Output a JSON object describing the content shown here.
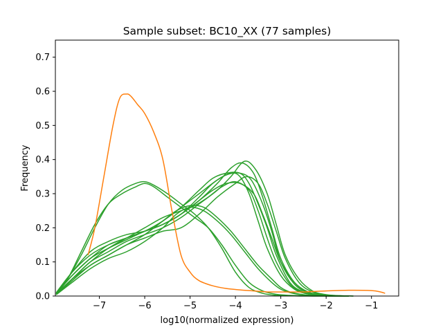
{
  "chart_data": {
    "type": "line",
    "title": "Sample subset: BC10_XX (77 samples)",
    "xlabel": "log10(normalized expression)",
    "ylabel": "Frequency",
    "xlim": [
      -7.97,
      -0.4
    ],
    "ylim": [
      0,
      0.75
    ],
    "xticks": [
      -7,
      -6,
      -5,
      -4,
      -3,
      -2,
      -1
    ],
    "xtick_labels": [
      "−7",
      "−6",
      "−5",
      "−4",
      "−3",
      "−2",
      "−1"
    ],
    "yticks": [
      0.0,
      0.1,
      0.2,
      0.3,
      0.4,
      0.5,
      0.6,
      0.7
    ],
    "ytick_labels": [
      "0.0",
      "0.1",
      "0.2",
      "0.3",
      "0.4",
      "0.5",
      "0.6",
      "0.7"
    ],
    "grid": false,
    "legend": "none",
    "colors": {
      "orange": "#ff7f0e",
      "green": "#2ca02c"
    },
    "series": [
      {
        "color": "orange",
        "x": [
          -7.25,
          -7.1,
          -6.9,
          -6.7,
          -6.55,
          -6.4,
          -6.3,
          -6.15,
          -6.0,
          -5.8,
          -5.6,
          -5.4,
          -5.2,
          -5.0,
          -4.8,
          -4.5,
          -4.2,
          -3.9,
          -3.6,
          -3.3,
          -3.0,
          -2.5,
          -2.0,
          -1.5,
          -1.0,
          -0.8,
          -0.7
        ],
        "y": [
          0.12,
          0.2,
          0.35,
          0.5,
          0.58,
          0.592,
          0.585,
          0.56,
          0.535,
          0.48,
          0.4,
          0.25,
          0.12,
          0.07,
          0.045,
          0.03,
          0.022,
          0.018,
          0.015,
          0.012,
          0.012,
          0.012,
          0.015,
          0.017,
          0.016,
          0.012,
          0.008
        ]
      },
      {
        "color": "green",
        "x": [
          -7.95,
          -7.7,
          -7.4,
          -7.1,
          -6.8,
          -6.5,
          -6.2,
          -6.0,
          -5.8,
          -5.5,
          -5.2,
          -4.9,
          -4.6,
          -4.3,
          -4.0,
          -3.7,
          -3.4,
          -3.1,
          -2.8,
          -2.5,
          -2.2,
          -1.9,
          -1.6
        ],
        "y": [
          0.005,
          0.05,
          0.13,
          0.21,
          0.27,
          0.3,
          0.32,
          0.33,
          0.32,
          0.29,
          0.26,
          0.23,
          0.2,
          0.15,
          0.09,
          0.04,
          0.015,
          0.005,
          0.002,
          0.001,
          0.0,
          0.0,
          0.0
        ]
      },
      {
        "color": "green",
        "x": [
          -7.95,
          -7.7,
          -7.4,
          -7.1,
          -6.8,
          -6.5,
          -6.2,
          -6.0,
          -5.8,
          -5.5,
          -5.2,
          -4.9,
          -4.6,
          -4.3,
          -4.0,
          -3.7,
          -3.4,
          -3.1,
          -2.8,
          -2.5,
          -2.2,
          -1.9,
          -1.6
        ],
        "y": [
          0.005,
          0.05,
          0.12,
          0.2,
          0.27,
          0.31,
          0.33,
          0.335,
          0.325,
          0.3,
          0.27,
          0.24,
          0.2,
          0.14,
          0.07,
          0.025,
          0.008,
          0.002,
          0.001,
          0.0,
          0.0,
          0.0,
          0.0
        ]
      },
      {
        "color": "green",
        "x": [
          -7.95,
          -7.6,
          -7.2,
          -6.8,
          -6.4,
          -6.0,
          -5.6,
          -5.2,
          -4.8,
          -4.4,
          -4.1,
          -3.9,
          -3.7,
          -3.5,
          -3.3,
          -3.0,
          -2.7,
          -2.4,
          -2.1,
          -1.8,
          -1.5
        ],
        "y": [
          0.01,
          0.07,
          0.12,
          0.15,
          0.17,
          0.19,
          0.22,
          0.26,
          0.3,
          0.34,
          0.36,
          0.35,
          0.3,
          0.22,
          0.14,
          0.06,
          0.02,
          0.006,
          0.002,
          0.0,
          0.0
        ]
      },
      {
        "color": "green",
        "x": [
          -7.95,
          -7.6,
          -7.2,
          -6.8,
          -6.4,
          -6.0,
          -5.6,
          -5.2,
          -4.8,
          -4.4,
          -4.1,
          -3.85,
          -3.6,
          -3.4,
          -3.2,
          -3.0,
          -2.7,
          -2.4,
          -2.1,
          -1.8,
          -1.5
        ],
        "y": [
          0.008,
          0.06,
          0.11,
          0.14,
          0.165,
          0.19,
          0.21,
          0.24,
          0.28,
          0.33,
          0.375,
          0.39,
          0.36,
          0.29,
          0.2,
          0.11,
          0.04,
          0.012,
          0.003,
          0.0,
          0.0
        ]
      },
      {
        "color": "green",
        "x": [
          -7.95,
          -7.6,
          -7.2,
          -6.8,
          -6.4,
          -6.0,
          -5.6,
          -5.2,
          -4.8,
          -4.4,
          -4.1,
          -3.8,
          -3.55,
          -3.3,
          -3.1,
          -2.9,
          -2.6,
          -2.3,
          -2.0,
          -1.7,
          -1.4
        ],
        "y": [
          0.006,
          0.05,
          0.1,
          0.13,
          0.16,
          0.18,
          0.2,
          0.23,
          0.27,
          0.31,
          0.35,
          0.395,
          0.37,
          0.3,
          0.21,
          0.12,
          0.05,
          0.015,
          0.004,
          0.001,
          0.0
        ]
      },
      {
        "color": "green",
        "x": [
          -7.95,
          -7.6,
          -7.2,
          -6.8,
          -6.4,
          -6.0,
          -5.6,
          -5.2,
          -4.8,
          -4.5,
          -4.2,
          -3.9,
          -3.6,
          -3.4,
          -3.2,
          -3.0,
          -2.7,
          -2.4,
          -2.1,
          -1.8,
          -1.5
        ],
        "y": [
          0.008,
          0.07,
          0.13,
          0.16,
          0.18,
          0.19,
          0.21,
          0.24,
          0.28,
          0.31,
          0.33,
          0.33,
          0.3,
          0.24,
          0.17,
          0.1,
          0.04,
          0.012,
          0.003,
          0.0,
          0.0
        ]
      },
      {
        "color": "green",
        "x": [
          -7.95,
          -7.6,
          -7.2,
          -6.8,
          -6.4,
          -6.0,
          -5.6,
          -5.2,
          -4.8,
          -4.4,
          -4.0,
          -3.75,
          -3.5,
          -3.3,
          -3.1,
          -2.9,
          -2.6,
          -2.3,
          -2.0,
          -1.7,
          -1.4
        ],
        "y": [
          0.005,
          0.05,
          0.09,
          0.12,
          0.15,
          0.17,
          0.19,
          0.2,
          0.24,
          0.29,
          0.33,
          0.35,
          0.33,
          0.27,
          0.19,
          0.11,
          0.04,
          0.012,
          0.003,
          0.001,
          0.0
        ]
      },
      {
        "color": "green",
        "x": [
          -7.95,
          -7.6,
          -7.2,
          -6.8,
          -6.4,
          -6.0,
          -5.6,
          -5.2,
          -4.9,
          -4.6,
          -4.3,
          -4.0,
          -3.7,
          -3.5,
          -3.3,
          -3.1,
          -2.8,
          -2.5,
          -2.2,
          -1.9,
          -1.6
        ],
        "y": [
          0.006,
          0.06,
          0.11,
          0.14,
          0.17,
          0.2,
          0.23,
          0.25,
          0.265,
          0.29,
          0.32,
          0.335,
          0.31,
          0.25,
          0.17,
          0.1,
          0.035,
          0.01,
          0.003,
          0.0,
          0.0
        ]
      },
      {
        "color": "green",
        "x": [
          -7.95,
          -7.6,
          -7.2,
          -6.8,
          -6.4,
          -6.0,
          -5.6,
          -5.2,
          -4.8,
          -4.5,
          -4.2,
          -3.9,
          -3.65,
          -3.4,
          -3.2,
          -3.0,
          -2.7,
          -2.4,
          -2.1,
          -1.8,
          -1.5
        ],
        "y": [
          0.007,
          0.06,
          0.11,
          0.15,
          0.17,
          0.19,
          0.21,
          0.24,
          0.29,
          0.33,
          0.355,
          0.36,
          0.34,
          0.27,
          0.19,
          0.1,
          0.035,
          0.01,
          0.003,
          0.0,
          0.0
        ]
      },
      {
        "color": "green",
        "x": [
          -7.95,
          -7.6,
          -7.2,
          -6.8,
          -6.4,
          -6.0,
          -5.6,
          -5.3,
          -5.0,
          -4.7,
          -4.4,
          -4.1,
          -3.8,
          -3.5,
          -3.2,
          -3.0,
          -2.8,
          -2.5,
          -2.2,
          -1.9,
          -1.6
        ],
        "y": [
          0.004,
          0.04,
          0.08,
          0.11,
          0.13,
          0.16,
          0.2,
          0.24,
          0.26,
          0.25,
          0.22,
          0.18,
          0.13,
          0.08,
          0.04,
          0.02,
          0.01,
          0.003,
          0.001,
          0.0,
          0.0
        ]
      },
      {
        "color": "green",
        "x": [
          -7.95,
          -7.6,
          -7.2,
          -6.8,
          -6.4,
          -6.0,
          -5.6,
          -5.3,
          -5.0,
          -4.7,
          -4.4,
          -4.1,
          -3.8,
          -3.5,
          -3.2,
          -3.0,
          -2.8,
          -2.5,
          -2.2,
          -1.9,
          -1.6
        ],
        "y": [
          0.005,
          0.045,
          0.09,
          0.12,
          0.15,
          0.18,
          0.22,
          0.25,
          0.265,
          0.26,
          0.23,
          0.19,
          0.14,
          0.09,
          0.05,
          0.025,
          0.012,
          0.004,
          0.001,
          0.0,
          0.0
        ]
      },
      {
        "color": "green",
        "x": [
          -7.95,
          -7.6,
          -7.2,
          -6.8,
          -6.4,
          -6.0,
          -5.6,
          -5.2,
          -4.8,
          -4.5,
          -4.2,
          -3.9,
          -3.7,
          -3.5,
          -3.3,
          -3.1,
          -2.8,
          -2.5,
          -2.2,
          -1.9,
          -1.6
        ],
        "y": [
          0.006,
          0.05,
          0.1,
          0.14,
          0.17,
          0.19,
          0.22,
          0.26,
          0.31,
          0.345,
          0.36,
          0.36,
          0.33,
          0.27,
          0.2,
          0.12,
          0.04,
          0.012,
          0.003,
          0.0,
          0.0
        ]
      }
    ]
  }
}
